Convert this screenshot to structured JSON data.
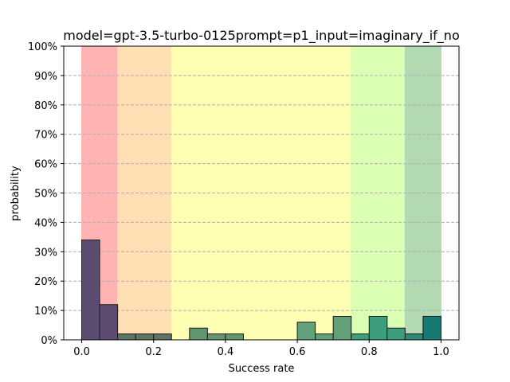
{
  "chart_data": {
    "type": "bar",
    "title": "model=gpt-3.5-turbo-0125prompt=p1_input=imaginary_if_no",
    "xlabel": "Success rate",
    "ylabel": "probability",
    "xlim": [
      -0.05,
      1.05
    ],
    "ylim": [
      0,
      1.0
    ],
    "x_ticks": [
      0.0,
      0.2,
      0.4,
      0.6,
      0.8,
      1.0
    ],
    "x_tick_labels": [
      "0.0",
      "0.2",
      "0.4",
      "0.6",
      "0.8",
      "1.0"
    ],
    "y_ticks": [
      0,
      0.1,
      0.2,
      0.3,
      0.4,
      0.5,
      0.6,
      0.7,
      0.8,
      0.9,
      1.0
    ],
    "y_tick_labels": [
      "0%",
      "10%",
      "20%",
      "30%",
      "40%",
      "50%",
      "60%",
      "70%",
      "80%",
      "90%",
      "100%"
    ],
    "grid": "horizontal dashed",
    "bin_width": 0.05,
    "bin_starts": [
      0.0,
      0.05,
      0.1,
      0.15,
      0.2,
      0.25,
      0.3,
      0.35,
      0.4,
      0.45,
      0.5,
      0.55,
      0.6,
      0.65,
      0.7,
      0.75,
      0.8,
      0.85,
      0.9,
      0.95
    ],
    "values": [
      0.34,
      0.12,
      0.02,
      0.02,
      0.02,
      0.0,
      0.04,
      0.02,
      0.02,
      0.0,
      0.0,
      0.0,
      0.06,
      0.02,
      0.08,
      0.02,
      0.08,
      0.04,
      0.02,
      0.08
    ],
    "bar_colors": [
      "#5c4c72",
      "#5d4b70",
      "#5d7560",
      "#5d7560",
      "#5d7560",
      "#62966e",
      "#62966e",
      "#62966e",
      "#62966e",
      "#62966e",
      "#62966e",
      "#62966e",
      "#62a07a",
      "#62a07a",
      "#62a07a",
      "#3c9e7c",
      "#3c9e7c",
      "#3c9e7c",
      "#2a8a78",
      "#167a72"
    ],
    "background_bands": [
      {
        "from": 0.0,
        "to": 0.1,
        "color": "#ffb3b3"
      },
      {
        "from": 0.1,
        "to": 0.25,
        "color": "#ffdfb3"
      },
      {
        "from": 0.25,
        "to": 0.75,
        "color": "#ffffb3"
      },
      {
        "from": 0.75,
        "to": 0.9,
        "color": "#dbffb3"
      },
      {
        "from": 0.9,
        "to": 1.0,
        "color": "#b3d9b3"
      }
    ]
  }
}
